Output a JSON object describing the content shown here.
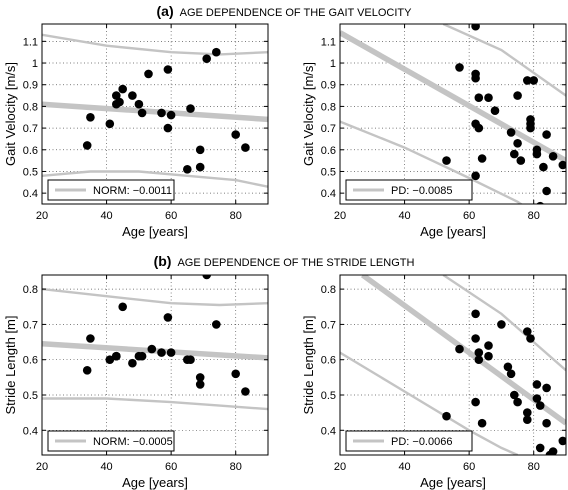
{
  "sections": {
    "a": {
      "letter": "(a)",
      "title": "AGE DEPENDENCE OF THE GAIT VELOCITY"
    },
    "b": {
      "letter": "(b)",
      "title": "AGE DEPENDENCE OF THE STRIDE LENGTH"
    }
  },
  "chart_data": [
    {
      "id": "a-norm",
      "type": "scatter",
      "xlabel": "Age [years]",
      "ylabel": "Gait Velocity [m/s]",
      "xlim": [
        20,
        90
      ],
      "ylim": [
        0.35,
        1.18
      ],
      "xticks": [
        20,
        40,
        60,
        80
      ],
      "yticks": [
        0.4,
        0.5,
        0.6,
        0.7,
        0.8,
        0.9,
        1.0,
        1.1
      ],
      "ytick_labels": [
        "0.4",
        "0.5",
        "0.6",
        "0.7",
        "0.8",
        "0.9",
        "1",
        "1.1"
      ],
      "grid": true,
      "legend": {
        "label": "NORM: −0.0011",
        "position": "bottom-left"
      },
      "points": [
        [
          34,
          0.62
        ],
        [
          35,
          0.75
        ],
        [
          41,
          0.72
        ],
        [
          43,
          0.85
        ],
        [
          43,
          0.81
        ],
        [
          44,
          0.82
        ],
        [
          45,
          0.88
        ],
        [
          48,
          0.85
        ],
        [
          50,
          0.81
        ],
        [
          51,
          0.77
        ],
        [
          53,
          0.95
        ],
        [
          57,
          0.77
        ],
        [
          59,
          0.97
        ],
        [
          59,
          0.7
        ],
        [
          60,
          0.76
        ],
        [
          65,
          0.51
        ],
        [
          66,
          0.79
        ],
        [
          69,
          0.6
        ],
        [
          69,
          0.52
        ],
        [
          71,
          1.02
        ],
        [
          74,
          1.05
        ],
        [
          80,
          0.67
        ],
        [
          83,
          0.61
        ]
      ],
      "fit_line": [
        [
          20,
          0.81
        ],
        [
          90,
          0.74
        ]
      ],
      "band_upper": [
        [
          20,
          1.13
        ],
        [
          40,
          1.08
        ],
        [
          60,
          1.05
        ],
        [
          75,
          1.04
        ],
        [
          90,
          1.05
        ]
      ],
      "band_lower": [
        [
          20,
          0.48
        ],
        [
          35,
          0.5
        ],
        [
          50,
          0.5
        ],
        [
          65,
          0.48
        ],
        [
          80,
          0.46
        ],
        [
          90,
          0.43
        ]
      ]
    },
    {
      "id": "a-pd",
      "type": "scatter",
      "xlabel": "Age [years]",
      "ylabel": "Gait Velocity [m/s]",
      "xlim": [
        20,
        90
      ],
      "ylim": [
        0.35,
        1.18
      ],
      "xticks": [
        20,
        40,
        60,
        80
      ],
      "yticks": [
        0.4,
        0.5,
        0.6,
        0.7,
        0.8,
        0.9,
        1.0,
        1.1
      ],
      "ytick_labels": [
        "0.4",
        "0.5",
        "0.6",
        "0.7",
        "0.8",
        "0.9",
        "1",
        "1.1"
      ],
      "grid": true,
      "legend": {
        "label": "PD: −0.0085",
        "position": "bottom-left"
      },
      "points": [
        [
          62,
          1.17
        ],
        [
          57,
          0.98
        ],
        [
          62,
          0.95
        ],
        [
          62,
          0.93
        ],
        [
          63,
          0.84
        ],
        [
          66,
          0.84
        ],
        [
          68,
          0.78
        ],
        [
          62,
          0.72
        ],
        [
          63,
          0.7
        ],
        [
          73,
          0.68
        ],
        [
          75,
          0.85
        ],
        [
          78,
          0.92
        ],
        [
          80,
          0.92
        ],
        [
          79,
          0.74
        ],
        [
          79,
          0.72
        ],
        [
          79,
          0.7
        ],
        [
          75,
          0.63
        ],
        [
          74,
          0.58
        ],
        [
          76,
          0.55
        ],
        [
          81,
          0.6
        ],
        [
          81,
          0.58
        ],
        [
          83,
          0.52
        ],
        [
          84,
          0.67
        ],
        [
          86,
          0.57
        ],
        [
          89,
          0.53
        ],
        [
          84,
          0.41
        ],
        [
          82,
          0.34
        ],
        [
          53,
          0.55
        ],
        [
          64,
          0.56
        ],
        [
          62,
          0.48
        ]
      ],
      "fit_line": [
        [
          20,
          1.14
        ],
        [
          90,
          0.55
        ]
      ],
      "band_upper": [
        [
          52,
          1.18
        ],
        [
          70,
          1.06
        ],
        [
          90,
          0.85
        ]
      ],
      "band_lower": [
        [
          20,
          0.73
        ],
        [
          40,
          0.61
        ],
        [
          60,
          0.47
        ],
        [
          75,
          0.36
        ],
        [
          78,
          0.33
        ]
      ]
    },
    {
      "id": "b-norm",
      "type": "scatter",
      "xlabel": "Age [years]",
      "ylabel": "Stride Length [m]",
      "xlim": [
        20,
        90
      ],
      "ylim": [
        0.33,
        0.84
      ],
      "xticks": [
        20,
        40,
        60,
        80
      ],
      "yticks": [
        0.4,
        0.5,
        0.6,
        0.7,
        0.8
      ],
      "ytick_labels": [
        "0.4",
        "0.5",
        "0.6",
        "0.7",
        "0.8"
      ],
      "grid": true,
      "legend": {
        "label": "NORM: −0.0005",
        "position": "bottom-left"
      },
      "points": [
        [
          34,
          0.57
        ],
        [
          35,
          0.66
        ],
        [
          41,
          0.6
        ],
        [
          43,
          0.61
        ],
        [
          43,
          0.61
        ],
        [
          45,
          0.75
        ],
        [
          48,
          0.59
        ],
        [
          50,
          0.61
        ],
        [
          51,
          0.61
        ],
        [
          54,
          0.63
        ],
        [
          57,
          0.62
        ],
        [
          59,
          0.72
        ],
        [
          60,
          0.62
        ],
        [
          65,
          0.6
        ],
        [
          66,
          0.6
        ],
        [
          69,
          0.55
        ],
        [
          69,
          0.53
        ],
        [
          71,
          0.84
        ],
        [
          74,
          0.7
        ],
        [
          80,
          0.56
        ],
        [
          83,
          0.51
        ]
      ],
      "fit_line": [
        [
          20,
          0.645
        ],
        [
          90,
          0.605
        ]
      ],
      "band_upper": [
        [
          20,
          0.8
        ],
        [
          40,
          0.78
        ],
        [
          60,
          0.76
        ],
        [
          75,
          0.755
        ],
        [
          90,
          0.76
        ]
      ],
      "band_lower": [
        [
          20,
          0.49
        ],
        [
          40,
          0.49
        ],
        [
          60,
          0.48
        ],
        [
          75,
          0.47
        ],
        [
          90,
          0.46
        ]
      ]
    },
    {
      "id": "b-pd",
      "type": "scatter",
      "xlabel": "Age [years]",
      "ylabel": "Stride Length [m]",
      "xlim": [
        20,
        90
      ],
      "ylim": [
        0.33,
        0.84
      ],
      "xticks": [
        20,
        40,
        60,
        80
      ],
      "yticks": [
        0.4,
        0.5,
        0.6,
        0.7,
        0.8
      ],
      "ytick_labels": [
        "0.4",
        "0.5",
        "0.6",
        "0.7",
        "0.8"
      ],
      "grid": true,
      "legend": {
        "label": "PD: −0.0066",
        "position": "bottom-left"
      },
      "points": [
        [
          53,
          0.44
        ],
        [
          57,
          0.63
        ],
        [
          62,
          0.73
        ],
        [
          62,
          0.66
        ],
        [
          63,
          0.62
        ],
        [
          63,
          0.6
        ],
        [
          64,
          0.42
        ],
        [
          66,
          0.64
        ],
        [
          66,
          0.61
        ],
        [
          70,
          0.7
        ],
        [
          72,
          0.58
        ],
        [
          73,
          0.56
        ],
        [
          74,
          0.5
        ],
        [
          75,
          0.48
        ],
        [
          78,
          0.68
        ],
        [
          78,
          0.45
        ],
        [
          78,
          0.43
        ],
        [
          79,
          0.66
        ],
        [
          81,
          0.53
        ],
        [
          81,
          0.49
        ],
        [
          82,
          0.47
        ],
        [
          82,
          0.35
        ],
        [
          84,
          0.52
        ],
        [
          84,
          0.42
        ],
        [
          85,
          0.33
        ],
        [
          86,
          0.34
        ],
        [
          89,
          0.37
        ],
        [
          62,
          0.48
        ]
      ],
      "fit_line": [
        [
          27,
          0.84
        ],
        [
          90,
          0.42
        ]
      ],
      "band_upper": [
        [
          52,
          0.84
        ],
        [
          70,
          0.73
        ],
        [
          90,
          0.57
        ]
      ],
      "band_lower": [
        [
          20,
          0.62
        ],
        [
          40,
          0.51
        ],
        [
          60,
          0.4
        ],
        [
          70,
          0.35
        ],
        [
          75,
          0.33
        ]
      ]
    }
  ]
}
